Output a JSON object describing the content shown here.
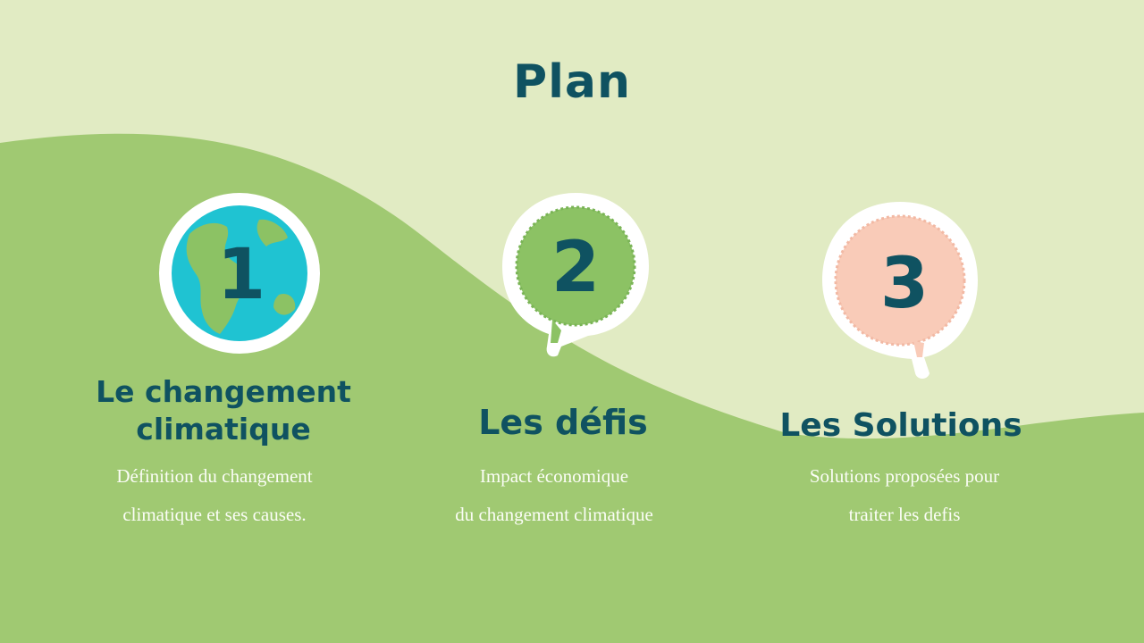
{
  "slide": {
    "title": "Plan",
    "colors": {
      "background": "#e1ebc3",
      "wave": "#a0c972",
      "heading": "#0f5261",
      "ocean": "#1fc3d2",
      "land": "#8cc264",
      "bubble_green": "#8cc264",
      "bubble_pink": "#f9cbb8",
      "sticker_border": "#ffffff"
    },
    "items": [
      {
        "number": "1",
        "icon": "earth-globe-icon",
        "heading_lines": [
          "Le changement",
          "climatique"
        ],
        "description_lines": [
          "Définition du changement",
          "climatique et ses causes."
        ]
      },
      {
        "number": "2",
        "icon": "green-speech-bubble-icon",
        "heading_lines": [
          "Les défis"
        ],
        "description_lines": [
          "Impact économique",
          "du changement climatique"
        ]
      },
      {
        "number": "3",
        "icon": "pink-speech-bubble-icon",
        "heading_lines": [
          "Les Solutions"
        ],
        "description_lines": [
          "Solutions proposées pour",
          "traiter les defis"
        ]
      }
    ]
  }
}
